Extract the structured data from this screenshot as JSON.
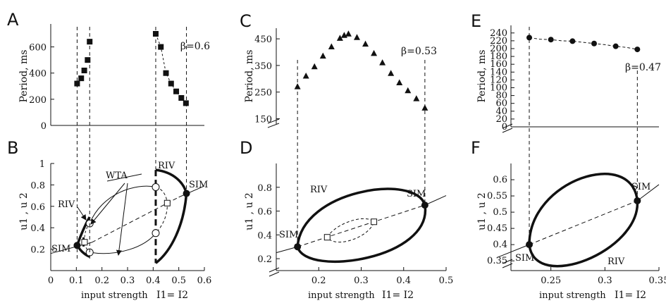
{
  "colors": {
    "ink": "#111111",
    "background": "#ffffff"
  },
  "chart_data": [
    {
      "panel_label": "A",
      "type": "scatter",
      "ylabel": "Period, ms",
      "annotation": "β=0.6",
      "ylim": [
        0,
        700
      ],
      "yticks": [
        0,
        200,
        400,
        600
      ],
      "xlim": [
        0,
        0.6
      ],
      "series": [
        {
          "marker": "filled-square",
          "x": [
            0.103,
            0.119,
            0.131,
            0.144,
            0.152
          ],
          "y": [
            320,
            360,
            420,
            500,
            640
          ]
        },
        {
          "marker": "filled-square",
          "x": [
            0.41,
            0.43,
            0.45,
            0.47,
            0.49,
            0.51,
            0.528
          ],
          "y": [
            700,
            600,
            400,
            320,
            260,
            210,
            170
          ]
        }
      ],
      "guides": [
        0.103,
        0.152,
        0.41,
        0.53
      ]
    },
    {
      "panel_label": "B",
      "type": "line",
      "ylabel": "u1 , u 2",
      "xlabel": "input strength",
      "xlabel_eq": "I1= I2",
      "xlim": [
        0,
        0.6
      ],
      "ylim": [
        0,
        1
      ],
      "xticks": [
        "0",
        "0.1",
        "0.2",
        "0.3",
        "0.4",
        "0.5",
        "0.6"
      ],
      "yticks": [
        "0.2",
        "0.4",
        "0.6",
        "0.8",
        "1"
      ],
      "annotations": [
        "WTA",
        "RIV",
        "RIV",
        "SIM",
        "SIM"
      ],
      "diagonal": [
        [
          0.0,
          0.16
        ],
        [
          0.6,
          0.79
        ]
      ],
      "sim_points": [
        [
          0.103,
          0.235
        ],
        [
          0.53,
          0.72
        ]
      ],
      "open_circles": [
        [
          0.152,
          0.44
        ],
        [
          0.152,
          0.17
        ],
        [
          0.41,
          0.78
        ],
        [
          0.41,
          0.35
        ]
      ],
      "open_squares": [
        [
          0.132,
          0.265
        ],
        [
          0.455,
          0.63
        ]
      ]
    },
    {
      "panel_label": "C",
      "type": "line",
      "ylabel": "Period, ms",
      "annotation": "β=0.53",
      "ylim": [
        130,
        490
      ],
      "yticks": [
        150,
        250,
        350,
        450
      ],
      "xlim": [
        0.1,
        0.5
      ],
      "x": [
        0.15,
        0.17,
        0.19,
        0.21,
        0.23,
        0.25,
        0.26,
        0.27,
        0.29,
        0.31,
        0.33,
        0.35,
        0.37,
        0.39,
        0.41,
        0.43,
        0.45
      ],
      "y": [
        270,
        310,
        345,
        385,
        420,
        452,
        463,
        468,
        455,
        430,
        395,
        360,
        320,
        285,
        255,
        225,
        190
      ],
      "guides": [
        0.15,
        0.45
      ]
    },
    {
      "panel_label": "D",
      "type": "line",
      "ylabel": "u1 , u 2",
      "xlabel": "input strength",
      "xlabel_eq": "I1= I2",
      "xlim": [
        0.1,
        0.5
      ],
      "ylim": [
        0.1,
        1.0
      ],
      "xticks": [
        "0.2",
        "0.3",
        "0.4",
        "0.5"
      ],
      "yticks": [
        "0.2",
        "0.4",
        "0.6",
        "0.8"
      ],
      "annotations": [
        "RIV",
        "SIM",
        "SIM"
      ],
      "diagonal": [
        [
          0.1,
          0.25
        ],
        [
          0.5,
          0.73
        ]
      ],
      "sim_points": [
        [
          0.15,
          0.3
        ],
        [
          0.45,
          0.65
        ]
      ],
      "open_squares": [
        [
          0.22,
          0.38
        ],
        [
          0.33,
          0.51
        ]
      ]
    },
    {
      "panel_label": "E",
      "type": "line",
      "ylabel": "Period, ms",
      "annotation": "β=0.47",
      "ylim": [
        0,
        245
      ],
      "yticks": [
        0,
        20,
        40,
        60,
        80,
        100,
        120,
        140,
        160,
        180,
        200,
        220,
        240
      ],
      "xlim": [
        0.2,
        0.35
      ],
      "x": [
        0.23,
        0.24,
        0.25,
        0.26,
        0.27,
        0.28,
        0.29,
        0.3,
        0.31,
        0.32,
        0.33
      ],
      "y": [
        228,
        224,
        223,
        220,
        219,
        216,
        213,
        210,
        206,
        203,
        198
      ],
      "markers_at": [
        0.23,
        0.25,
        0.27,
        0.29,
        0.31,
        0.33
      ],
      "guides": [
        0.23,
        0.33
      ]
    },
    {
      "panel_label": "F",
      "type": "line",
      "ylabel": "u1 , u 2",
      "xlabel": "input strength",
      "xlabel_eq": "I1= I2",
      "xlim": [
        0.2,
        0.35
      ],
      "ylim": [
        0.32,
        0.65
      ],
      "xticks": [
        "0.25",
        "0.3",
        "0.35"
      ],
      "yticks": [
        "0.35",
        "0.4",
        "0.45",
        "0.5",
        "0.55",
        "0.6"
      ],
      "annotations": [
        "RIV",
        "SIM",
        "SIM"
      ],
      "diagonal": [
        [
          0.2,
          0.36
        ],
        [
          0.35,
          0.585
        ]
      ],
      "sim_points": [
        [
          0.23,
          0.4
        ],
        [
          0.33,
          0.535
        ]
      ]
    }
  ]
}
